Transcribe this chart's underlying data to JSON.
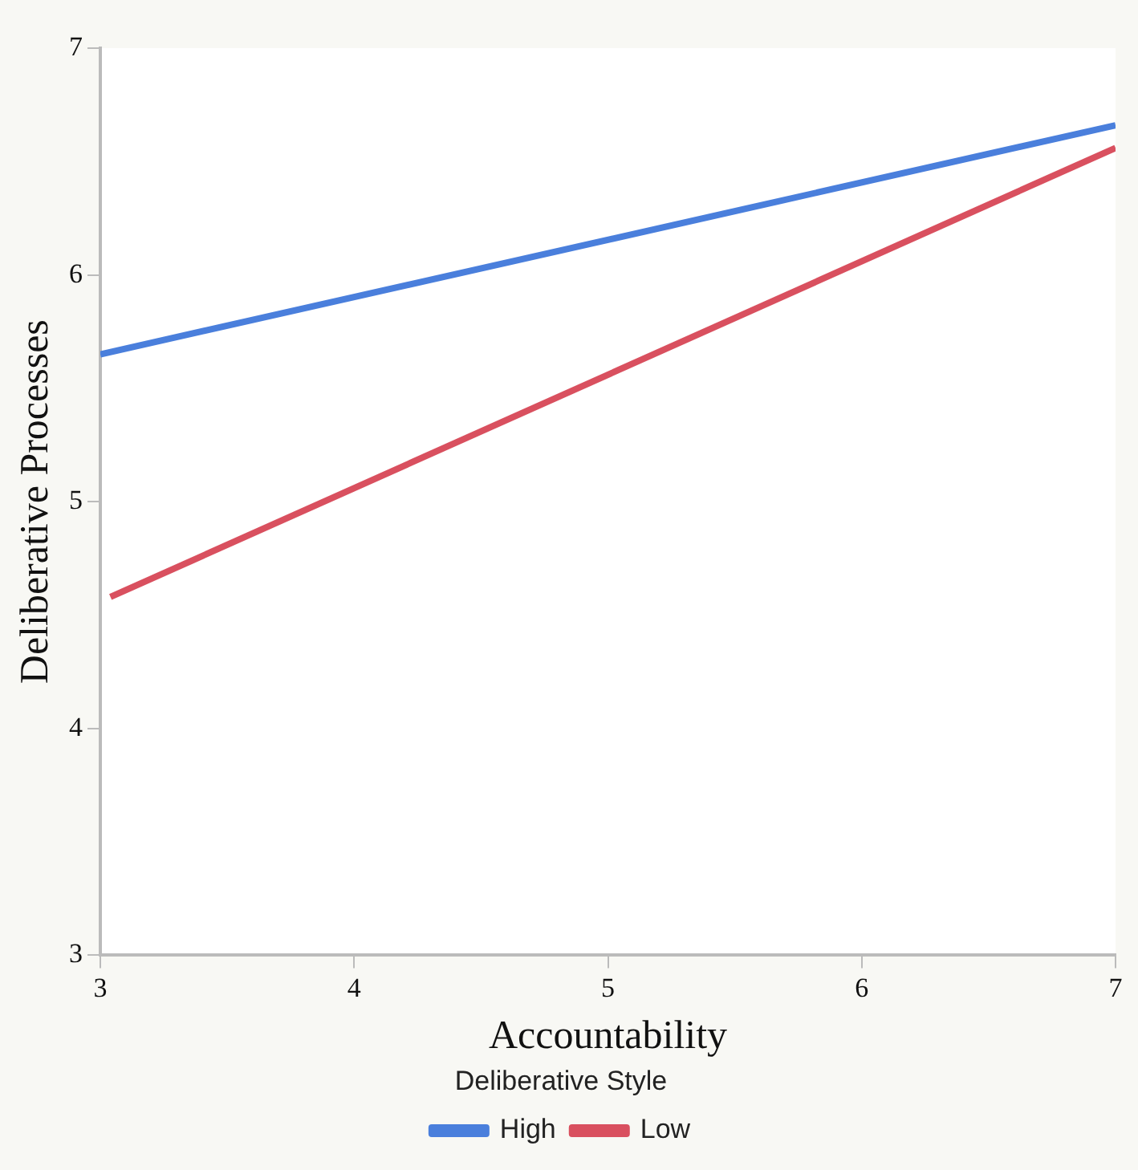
{
  "chart_data": {
    "type": "line",
    "xlabel": "Accountability",
    "ylabel": "Deliberative Processes",
    "legend_title": "Deliberative Style",
    "xlim": [
      3,
      7
    ],
    "xticks": [
      3,
      4,
      5,
      6,
      7
    ],
    "ylim": [
      3,
      7
    ],
    "yticks": [
      3,
      4,
      5,
      6,
      7
    ],
    "grid": false,
    "legend": "bottom",
    "marker": "none",
    "series": [
      {
        "name": "High",
        "color": "#4a7fdc",
        "x": [
          3,
          7
        ],
        "values": [
          5.65,
          6.66
        ]
      },
      {
        "name": "Low",
        "color": "#d9505f",
        "x": [
          3.04,
          7
        ],
        "values": [
          4.58,
          6.56
        ]
      }
    ]
  }
}
